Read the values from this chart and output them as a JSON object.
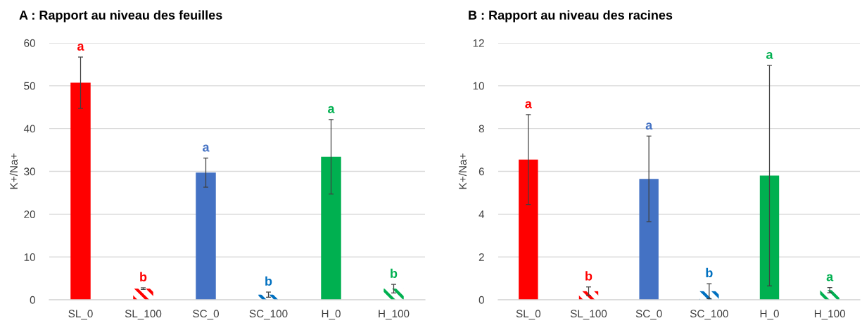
{
  "chart_data": [
    {
      "type": "bar",
      "title": "A : Rapport au niveau des feuilles",
      "ylabel": "K+/Na+",
      "categories": [
        "SL_0",
        "SL_100",
        "SC_0",
        "SC_100",
        "H_0",
        "H_100"
      ],
      "stacked": true,
      "series": [
        {
          "colors": [
            "#ff0000",
            "#ff0000",
            "#4472c4",
            "#0070c0",
            "#00b050",
            "#00b050"
          ],
          "values": [
            50.7,
            null,
            29.7,
            null,
            33.4,
            null
          ],
          "errors": [
            6.0,
            null,
            3.4,
            null,
            8.7,
            null
          ]
        },
        {
          "colors": [
            "#ff0000",
            "#ff0000",
            "#4472c4",
            "#0070c0",
            "#00b050",
            "#00b050"
          ],
          "values": [
            null,
            2.6,
            null,
            1.2,
            null,
            2.6
          ],
          "errors": [
            null,
            0.2,
            null,
            0.6,
            null,
            1.0
          ]
        }
      ],
      "ylim": [
        0,
        60
      ],
      "yticks": [
        0,
        10,
        20,
        30,
        40,
        50,
        60
      ],
      "grid": "y",
      "annotations": [
        {
          "text": "a",
          "x": "SL_0",
          "y": 56.7
        },
        {
          "text": "b",
          "x": "SL_100",
          "y": 2.8
        },
        {
          "text": "a",
          "x": "SC_0",
          "y": 33.1
        },
        {
          "text": "b",
          "x": "SC_100",
          "y": 1.8
        },
        {
          "text": "a",
          "x": "H_0",
          "y": 42.1
        },
        {
          "text": "b",
          "x": "H_100",
          "y": 3.6
        }
      ]
    },
    {
      "type": "bar",
      "title": "B : Rapport au niveau des racines",
      "ylabel": "K+/Na+",
      "categories": [
        "SL_0",
        "SL_100",
        "SC_0",
        "SC_100",
        "H_0",
        "H_100"
      ],
      "stacked": true,
      "series": [
        {
          "colors": [
            "#ff0000",
            "#ff0000",
            "#4472c4",
            "#0070c0",
            "#00b050",
            "#00b050"
          ],
          "values": [
            6.55,
            null,
            5.65,
            null,
            5.8,
            null
          ],
          "errors": [
            2.1,
            null,
            2.0,
            null,
            5.15,
            null
          ]
        },
        {
          "colors": [
            "#ff0000",
            "#ff0000",
            "#4472c4",
            "#0070c0",
            "#00b050",
            "#00b050"
          ],
          "values": [
            null,
            0.4,
            null,
            0.4,
            null,
            0.45
          ],
          "errors": [
            null,
            0.2,
            null,
            0.35,
            null,
            0.12
          ]
        }
      ],
      "ylim": [
        0,
        12
      ],
      "yticks": [
        0,
        2,
        4,
        6,
        8,
        10,
        12
      ],
      "grid": "y",
      "annotations": [
        {
          "text": "a",
          "x": "SL_0",
          "y": 8.65
        },
        {
          "text": "b",
          "x": "SL_100",
          "y": 0.6
        },
        {
          "text": "a",
          "x": "SC_0",
          "y": 7.65
        },
        {
          "text": "b",
          "x": "SC_100",
          "y": 0.75
        },
        {
          "text": "a",
          "x": "H_0",
          "y": 10.95
        },
        {
          "text": "a",
          "x": "H_100",
          "y": 0.57
        }
      ]
    }
  ]
}
